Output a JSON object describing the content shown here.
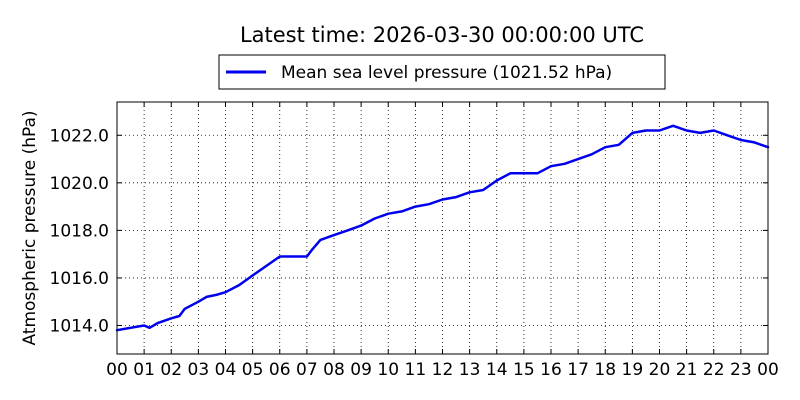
{
  "chart_data": {
    "type": "line",
    "title": "Latest time: 2026-03-30 00:00:00 UTC",
    "xlabel": "",
    "ylabel": "Atmospheric pressure (hPa)",
    "legend_location": "top-center",
    "grid": true,
    "grid_style": "dotted",
    "xlim": [
      0,
      24
    ],
    "ylim": [
      1012.8,
      1023.4
    ],
    "x_ticks": [
      0,
      1,
      2,
      3,
      4,
      5,
      6,
      7,
      8,
      9,
      10,
      11,
      12,
      13,
      14,
      15,
      16,
      17,
      18,
      19,
      20,
      21,
      22,
      23,
      24
    ],
    "x_tick_labels": [
      "00",
      "01",
      "02",
      "03",
      "04",
      "05",
      "06",
      "07",
      "08",
      "09",
      "10",
      "11",
      "12",
      "13",
      "14",
      "15",
      "16",
      "17",
      "18",
      "19",
      "20",
      "21",
      "22",
      "23",
      "00"
    ],
    "y_ticks": [
      1014.0,
      1016.0,
      1018.0,
      1020.0,
      1022.0
    ],
    "y_tick_labels": [
      "1014.0",
      "1016.0",
      "1018.0",
      "1020.0",
      "1022.0"
    ],
    "series": [
      {
        "name": "Mean sea level pressure (1021.52 hPa)",
        "color": "#0000ee",
        "x": [
          0,
          0.5,
          1,
          1.2,
          1.5,
          2,
          2.3,
          2.5,
          3,
          3.3,
          3.7,
          4,
          4.5,
          5,
          5.5,
          6,
          6.5,
          7,
          7.2,
          7.5,
          8,
          8.5,
          9,
          9.5,
          10,
          10.5,
          11,
          11.5,
          12,
          12.5,
          13,
          13.5,
          14,
          14.5,
          15,
          15.5,
          16,
          16.5,
          17,
          17.5,
          18,
          18.5,
          19,
          19.5,
          20,
          20.5,
          21,
          21.5,
          22,
          22.5,
          23,
          23.5,
          24
        ],
        "y": [
          1013.8,
          1013.9,
          1014.0,
          1013.9,
          1014.1,
          1014.3,
          1014.4,
          1014.7,
          1015.0,
          1015.2,
          1015.3,
          1015.4,
          1015.7,
          1016.1,
          1016.5,
          1016.9,
          1016.9,
          1016.9,
          1017.2,
          1017.6,
          1017.8,
          1018.0,
          1018.2,
          1018.5,
          1018.7,
          1018.8,
          1019.0,
          1019.1,
          1019.3,
          1019.4,
          1019.6,
          1019.7,
          1020.1,
          1020.4,
          1020.4,
          1020.4,
          1020.7,
          1020.8,
          1021.0,
          1021.2,
          1021.5,
          1021.6,
          1022.1,
          1022.2,
          1022.2,
          1022.4,
          1022.2,
          1022.1,
          1022.2,
          1022.0,
          1021.8,
          1021.7,
          1021.5
        ]
      }
    ]
  }
}
